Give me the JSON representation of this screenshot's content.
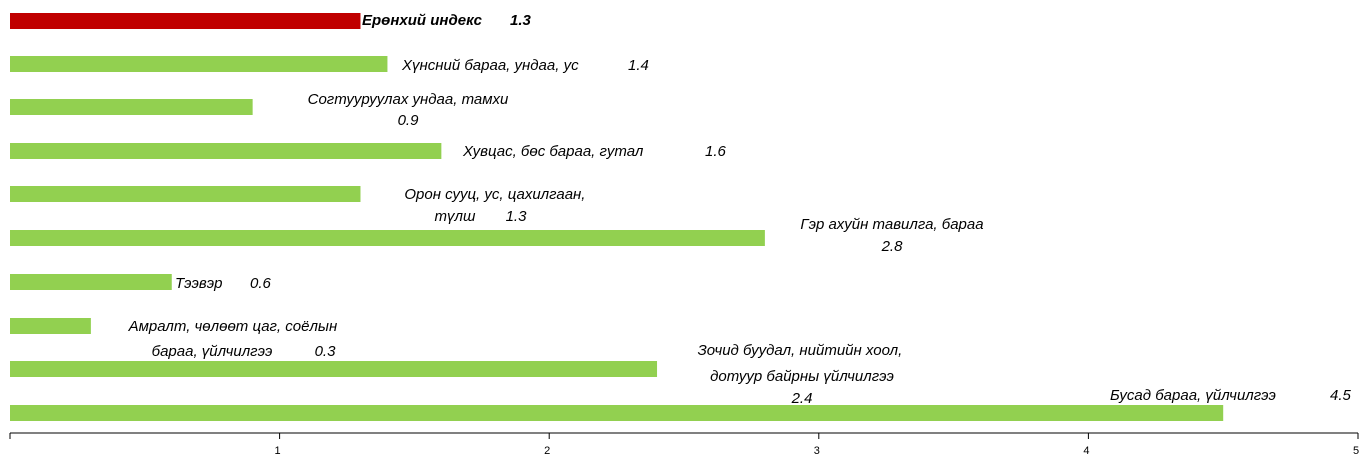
{
  "chart_data": {
    "type": "bar",
    "orientation": "horizontal",
    "categories": [
      "Ерөнхий индекс",
      "Хүнсний бараа, ундаа, ус",
      "Согтууруулах ундаа, тамхи",
      "Хувцас, бөс бараа, гутал",
      "Орон сууц, ус, цахилгаан, түлш",
      "Гэр ахуйн тавилга, бараа",
      "Тээвэр",
      "Амралт, чөлөөт цаг, соёлын бараа, үйлчилгээ",
      "Зочид буудал, нийтийн хоол, дотуур байрны үйлчилгээ",
      "Бусад бараа, үйлчилгээ"
    ],
    "values": [
      1.3,
      1.4,
      0.9,
      1.6,
      1.3,
      2.8,
      0.6,
      0.3,
      2.4,
      4.5
    ],
    "colors": [
      "#c00000",
      "#92d050",
      "#92d050",
      "#92d050",
      "#92d050",
      "#92d050",
      "#92d050",
      "#92d050",
      "#92d050",
      "#92d050"
    ],
    "xlim": [
      0,
      5
    ],
    "xticks": [
      1,
      2,
      3,
      4,
      5
    ],
    "grid": false
  }
}
